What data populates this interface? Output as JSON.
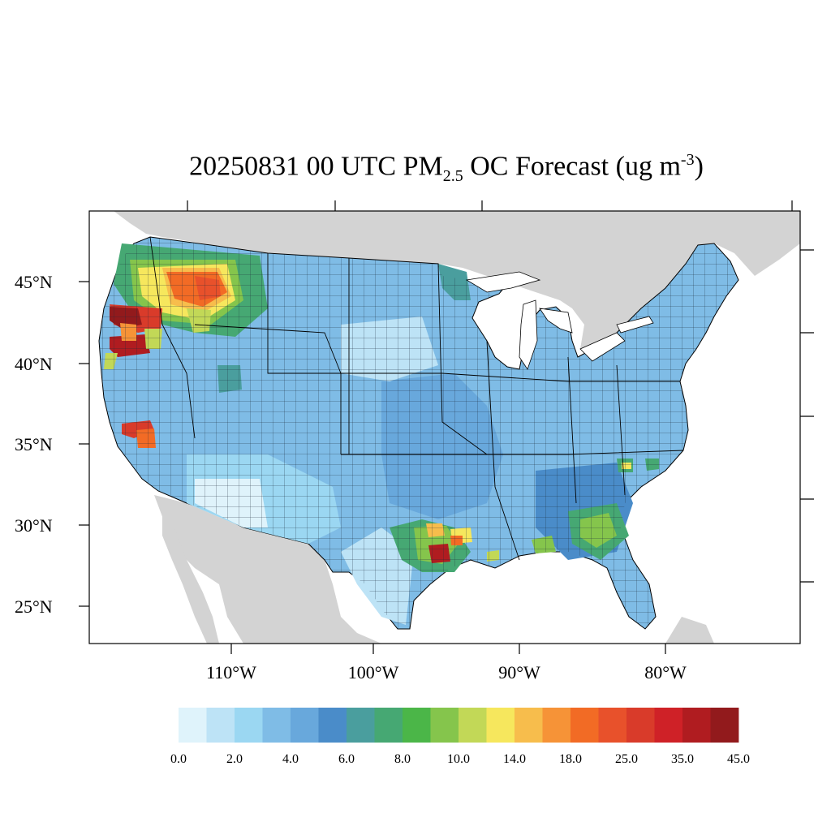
{
  "title": {
    "prefix": "20250831 00 UTC PM",
    "subscript": "2.5",
    "middle": " OC Forecast (ug m",
    "superscript": "-3",
    "suffix": ")"
  },
  "axes": {
    "lat_labels": [
      "45°N",
      "40°N",
      "35°N",
      "30°N",
      "25°N"
    ],
    "lon_labels": [
      "110°W",
      "100°W",
      "90°W",
      "80°W"
    ]
  },
  "colorbar": {
    "colors": [
      "#dff3fb",
      "#bde3f6",
      "#9bd7f2",
      "#7fbce6",
      "#68a8dc",
      "#4a8cc9",
      "#4a9e9e",
      "#46a873",
      "#4bb648",
      "#85c54c",
      "#c2d857",
      "#f6e75d",
      "#f7bd4c",
      "#f69337",
      "#f26b25",
      "#e8512b",
      "#d93b2a",
      "#cf2127",
      "#b01c20",
      "#921a1c"
    ],
    "labels": [
      "0.0",
      "2.0",
      "4.0",
      "6.0",
      "8.0",
      "10.0",
      "14.0",
      "18.0",
      "25.0",
      "35.0",
      "45.0"
    ]
  },
  "regions": {
    "us": "#7fbce6",
    "land_outside": "#d3d3d3",
    "water": "#ffffff"
  },
  "hotspots": [
    {
      "name": "northwest-plume",
      "level": 16
    },
    {
      "name": "northern-california",
      "level": 18
    },
    {
      "name": "southern-sierra",
      "level": 16
    },
    {
      "name": "east-texas",
      "level": 17
    },
    {
      "name": "louisiana",
      "level": 11
    },
    {
      "name": "georgia",
      "level": 9
    },
    {
      "name": "carolina",
      "level": 11
    }
  ]
}
